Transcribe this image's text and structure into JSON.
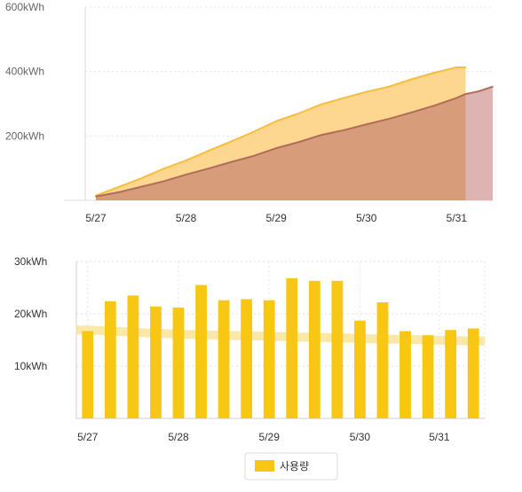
{
  "chart_data": [
    {
      "type": "area",
      "yunit": "kWh",
      "yticks": [
        {
          "value": 600,
          "label": "600kWh"
        },
        {
          "value": 400,
          "label": "400kWh"
        },
        {
          "value": 200,
          "label": "200kWh"
        }
      ],
      "ylim": [
        0,
        600
      ],
      "xlim": [
        0,
        4.4
      ],
      "xticks": [
        {
          "value": 0,
          "label": "5/27"
        },
        {
          "value": 1,
          "label": "5/28"
        },
        {
          "value": 2,
          "label": "5/29"
        },
        {
          "value": 3,
          "label": "5/30"
        },
        {
          "value": 4,
          "label": "5/31"
        }
      ],
      "grid": "horizontal dotted",
      "series": [
        {
          "color": "#F7BE3E",
          "fill": "#FDD68F",
          "x": [
            0,
            0.25,
            0.5,
            0.75,
            1.0,
            1.25,
            1.5,
            1.75,
            2.0,
            2.25,
            2.5,
            2.75,
            3.0,
            3.25,
            3.5,
            3.75,
            4.0,
            4.1
          ],
          "values": [
            15,
            41,
            68,
            98,
            124,
            154,
            183,
            213,
            246,
            270,
            298,
            318,
            337,
            353,
            376,
            396,
            413,
            413
          ]
        },
        {
          "color": "#B26C5A",
          "fill": "#D79D7A",
          "x": [
            0,
            0.25,
            0.5,
            0.75,
            1.0,
            1.25,
            1.5,
            1.75,
            2.0,
            2.25,
            2.5,
            2.75,
            3.0,
            3.25,
            3.5,
            3.75,
            4.0,
            4.1
          ],
          "values": [
            12,
            25,
            42,
            59,
            80,
            99,
            119,
            138,
            162,
            181,
            203,
            218,
            236,
            253,
            273,
            294,
            318,
            330
          ]
        },
        {
          "color": "#B26C5A",
          "fill": "#DDB4B2",
          "x": [
            4.1,
            4.25,
            4.4
          ],
          "values": [
            330,
            339,
            353
          ]
        }
      ]
    },
    {
      "type": "bar",
      "yunit": "kWh",
      "yticks": [
        {
          "value": 30,
          "label": "30kWh"
        },
        {
          "value": 20,
          "label": "20kWh"
        },
        {
          "value": 10,
          "label": "10kWh"
        }
      ],
      "ylim": [
        0,
        30
      ],
      "xticks": [
        {
          "index": 0,
          "label": "5/27"
        },
        {
          "index": 4,
          "label": "5/28"
        },
        {
          "index": 8,
          "label": "5/29"
        },
        {
          "index": 12,
          "label": "5/30"
        },
        {
          "index": 15.5,
          "label": "5/31"
        }
      ],
      "grid": "dotted",
      "bar_color": "#F7C713",
      "band_color": "#FAE5A0",
      "values": [
        16.7,
        22.4,
        23.5,
        21.4,
        21.2,
        25.5,
        22.6,
        22.8,
        22.6,
        26.8,
        26.3,
        26.3,
        18.7,
        22.2,
        16.7,
        15.9,
        16.9,
        17.2
      ],
      "band": [
        16.9,
        16.7,
        16.5,
        16.3,
        16.1,
        16.0,
        15.9,
        15.8,
        15.7,
        15.6,
        15.5,
        15.4,
        15.3,
        15.2,
        15.1,
        15.0,
        14.9,
        14.8
      ],
      "legend": {
        "position": "bottom-center",
        "label": "사용량"
      }
    }
  ]
}
